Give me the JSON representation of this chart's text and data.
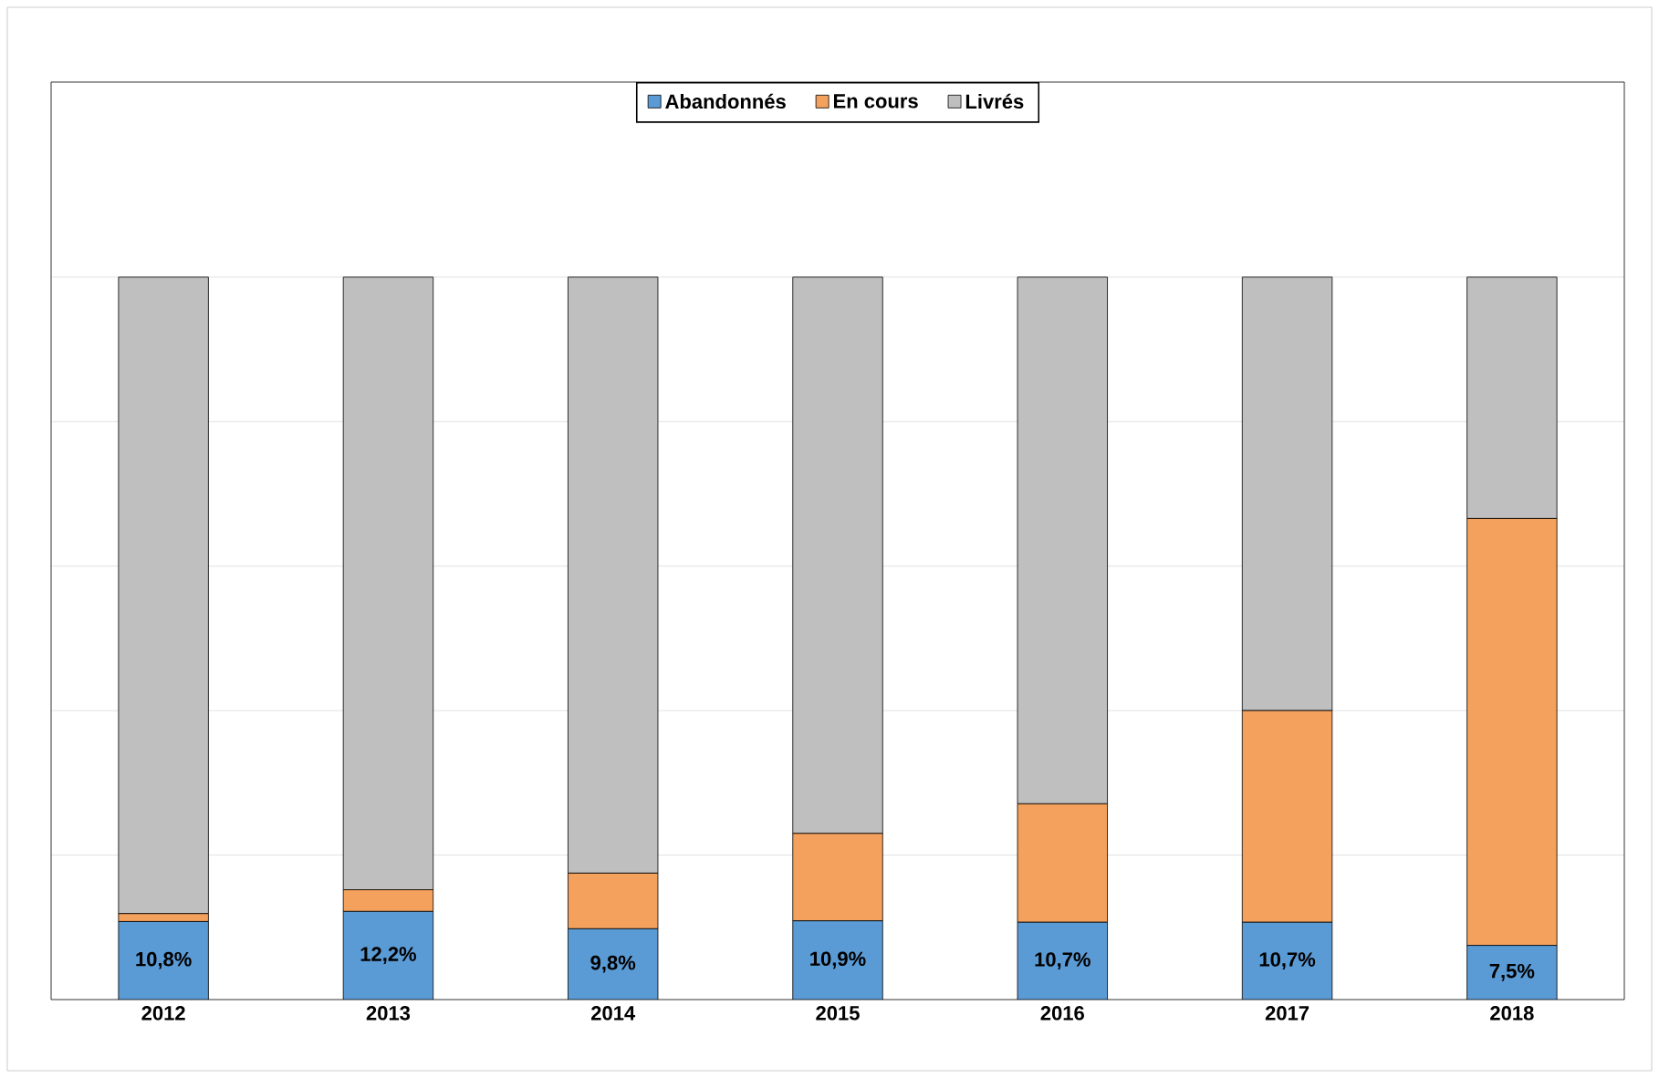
{
  "chart_data": {
    "type": "bar",
    "stacked": true,
    "grid": "y",
    "legend": "top",
    "tick_labels": "x",
    "ylim": [
      0,
      127
    ],
    "yticks": [
      {
        "value": 20,
        "label": null
      },
      {
        "value": 40,
        "label": null
      },
      {
        "value": 60,
        "label": null
      },
      {
        "value": 80,
        "label": null
      },
      {
        "value": 100,
        "label": null
      }
    ],
    "categories": [
      "2012",
      "2013",
      "2014",
      "2015",
      "2016",
      "2017",
      "2018"
    ],
    "series": [
      {
        "name": "Abandonnés",
        "color": "#5b9bd5",
        "values": [
          10.8,
          12.2,
          9.8,
          10.9,
          10.7,
          10.7,
          7.5
        ],
        "value_labels": [
          "10,8%",
          "12,2%",
          "9,8%",
          "10,9%",
          "10,7%",
          "10,7%",
          "7,5%"
        ]
      },
      {
        "name": "En cours",
        "color": "#f4a15d",
        "values": [
          1.1,
          3.0,
          7.7,
          12.1,
          16.4,
          29.3,
          59.1
        ]
      },
      {
        "name": "Livrés",
        "color": "#bfbfbf",
        "values": [
          88.1,
          84.8,
          82.5,
          77.0,
          72.9,
          60.0,
          33.4
        ]
      }
    ]
  }
}
